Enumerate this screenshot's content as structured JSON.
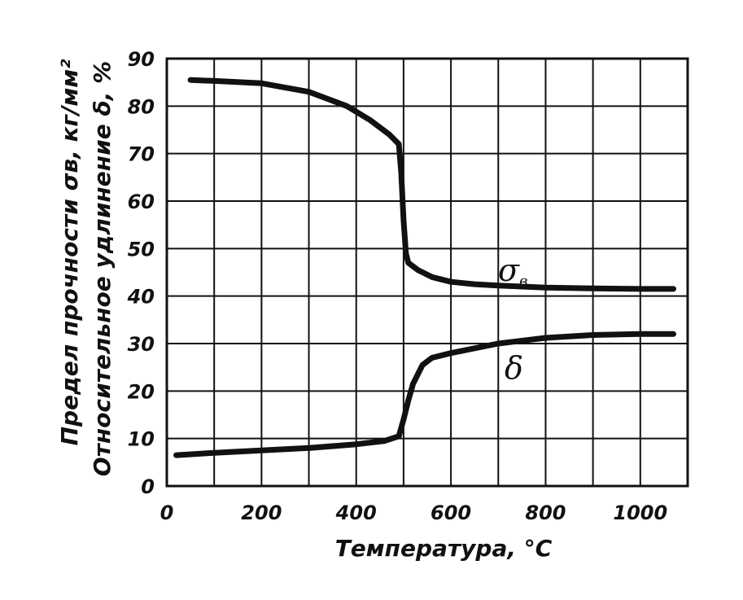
{
  "chart_data": {
    "type": "line",
    "xlabel": "Температура, °С",
    "ylabel_line1": "Предел прочности σв, кг/мм²",
    "ylabel_line2": "Относительное удлинение δ, %",
    "xlim": [
      0,
      1100
    ],
    "ylim": [
      0,
      90
    ],
    "grid": true,
    "x_ticks": [
      0,
      200,
      400,
      600,
      800,
      1000
    ],
    "x_tick_labels": [
      "0",
      "200",
      "400",
      "600",
      "800",
      "1000"
    ],
    "y_ticks": [
      0,
      10,
      20,
      30,
      40,
      50,
      60,
      70,
      80,
      90
    ],
    "y_tick_labels": [
      "0",
      "10",
      "20",
      "30",
      "40",
      "50",
      "60",
      "70",
      "80",
      "90"
    ],
    "series": [
      {
        "name": "σв",
        "x": [
          50,
          100,
          200,
          300,
          380,
          430,
          470,
          490,
          495,
          500,
          505,
          510,
          530,
          560,
          600,
          650,
          700,
          800,
          900,
          1000,
          1070
        ],
        "values": [
          85.5,
          85.3,
          84.8,
          83,
          80,
          77,
          74,
          72,
          66,
          56,
          49,
          47,
          45.5,
          44,
          43,
          42.5,
          42.2,
          41.8,
          41.6,
          41.5,
          41.5
        ]
      },
      {
        "name": "δ",
        "x": [
          20,
          100,
          200,
          300,
          400,
          460,
          490,
          500,
          510,
          520,
          540,
          560,
          600,
          650,
          700,
          800,
          900,
          1000,
          1070
        ],
        "values": [
          6.5,
          7,
          7.5,
          8,
          8.8,
          9.5,
          10.5,
          14,
          18,
          21.5,
          25.5,
          27,
          28,
          29,
          30,
          31.2,
          31.8,
          32,
          32
        ]
      }
    ],
    "annotations": {
      "sigma_label": "σ",
      "sigma_sub": "в",
      "delta_label": "δ"
    }
  }
}
